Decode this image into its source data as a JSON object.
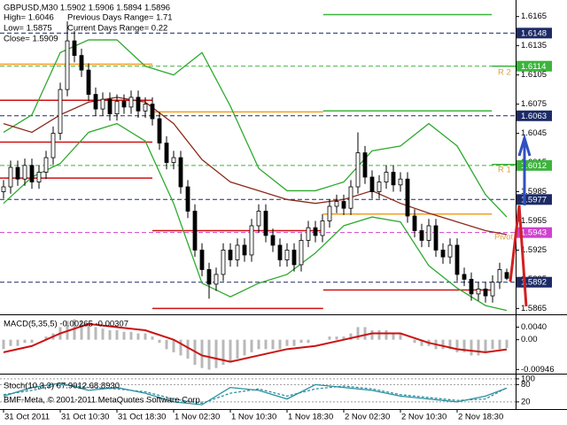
{
  "footer": "BMF-Meta, © 2001-2011 MetaQuotes Software Corp.",
  "chart_data": [
    {
      "type": "candlestick",
      "title": "GBPUSD,M30  1.5902 1.5906 1.5894 1.5896",
      "info": [
        "High= 1.6046",
        "Previous Days Range= 1.71",
        "Low= 1.5875",
        "Current Days Range= 0.22",
        "Close= 1.5909"
      ],
      "xlim": [
        -0.5,
        72.25
      ],
      "xticks": [
        {
          "value": 0,
          "label": "31 Oct 2011"
        },
        {
          "value": 8,
          "label": "31 Oct 10:30"
        },
        {
          "value": 16,
          "label": "31 Oct 18:30"
        },
        {
          "value": 24,
          "label": "1 Nov 02:30"
        },
        {
          "value": 32,
          "label": "1 Nov 10:30"
        },
        {
          "value": 40,
          "label": "1 Nov 18:30"
        },
        {
          "value": 48,
          "label": "2 Nov 02:30"
        },
        {
          "value": 56,
          "label": "2 Nov 10:30"
        },
        {
          "value": 64,
          "label": "2 Nov 18:30"
        }
      ],
      "ylim": [
        1.5859,
        1.6182
      ],
      "yticks": [
        1.6165,
        1.6135,
        1.6105,
        1.6075,
        1.6045,
        1.6015,
        1.5985,
        1.5955,
        1.5925,
        1.5895,
        1.5865
      ],
      "up_color": "#ffffff",
      "down_color": "#000000",
      "open": [
        1.5985,
        1.599,
        1.601,
        1.5998,
        1.6012,
        1.5995,
        1.6005,
        1.602,
        1.6045,
        1.609,
        1.614,
        1.6125,
        1.611,
        1.6085,
        1.607,
        1.608,
        1.6065,
        1.6078,
        1.6072,
        1.6082,
        1.6068,
        1.6075,
        1.606,
        1.6035,
        1.6015,
        1.602,
        1.599,
        1.5965,
        1.5925,
        1.5905,
        1.589,
        1.59,
        1.5925,
        1.5915,
        1.593,
        1.592,
        1.595,
        1.5965,
        1.594,
        1.593,
        1.5915,
        1.5925,
        1.591,
        1.5935,
        1.5948,
        1.594,
        1.5955,
        1.597,
        1.5975,
        1.5968,
        1.599,
        1.6025,
        1.6,
        1.5985,
        1.5995,
        1.6005,
        1.5992,
        1.5998,
        1.596,
        1.5945,
        1.5935,
        1.595,
        1.5925,
        1.5918,
        1.593,
        1.59,
        1.5895,
        1.588,
        1.5885,
        1.5878,
        1.5892,
        1.5902
      ],
      "high": [
        1.5997,
        1.6017,
        1.6017,
        1.6019,
        1.6019,
        1.6012,
        1.6027,
        1.6052,
        1.6097,
        1.616,
        1.615,
        1.6132,
        1.6117,
        1.6092,
        1.6087,
        1.6087,
        1.6085,
        1.6085,
        1.6089,
        1.6089,
        1.6082,
        1.6082,
        1.6067,
        1.6042,
        1.6027,
        1.6027,
        1.5997,
        1.5972,
        1.5932,
        1.5912,
        1.5907,
        1.5932,
        1.5932,
        1.5937,
        1.5937,
        1.5957,
        1.5972,
        1.5972,
        1.5947,
        1.5937,
        1.5932,
        1.5932,
        1.5942,
        1.5955,
        1.5955,
        1.5962,
        1.5977,
        1.5982,
        1.5982,
        1.5997,
        1.6046,
        1.6032,
        1.6007,
        1.6002,
        1.6012,
        1.6012,
        1.6005,
        1.6005,
        1.5967,
        1.5952,
        1.5957,
        1.5957,
        1.5932,
        1.5937,
        1.5937,
        1.5907,
        1.5902,
        1.5892,
        1.5892,
        1.5899,
        1.5912,
        1.5906
      ],
      "low": [
        1.5978,
        1.5983,
        1.5991,
        1.5991,
        1.5988,
        1.5988,
        1.5998,
        1.6013,
        1.6038,
        1.6083,
        1.6118,
        1.6103,
        1.6078,
        1.6063,
        1.6063,
        1.6058,
        1.6058,
        1.6065,
        1.6065,
        1.6061,
        1.6061,
        1.6053,
        1.6028,
        1.6008,
        1.6008,
        1.5983,
        1.5958,
        1.5918,
        1.5898,
        1.5875,
        1.5883,
        1.5893,
        1.5908,
        1.5908,
        1.5913,
        1.5913,
        1.5943,
        1.5933,
        1.5923,
        1.5908,
        1.5908,
        1.5903,
        1.5903,
        1.5928,
        1.5933,
        1.5933,
        1.5948,
        1.5963,
        1.5961,
        1.5961,
        1.5983,
        1.5993,
        1.5978,
        1.5978,
        1.5988,
        1.5985,
        1.5985,
        1.5953,
        1.5938,
        1.5928,
        1.5928,
        1.5918,
        1.5911,
        1.5911,
        1.5893,
        1.5888,
        1.5873,
        1.5873,
        1.5871,
        1.5871,
        1.5885,
        1.5894
      ],
      "close": [
        1.599,
        1.601,
        1.5998,
        1.6012,
        1.5995,
        1.6005,
        1.602,
        1.6045,
        1.609,
        1.614,
        1.6125,
        1.611,
        1.6085,
        1.607,
        1.608,
        1.6065,
        1.6078,
        1.6072,
        1.6082,
        1.6068,
        1.6075,
        1.606,
        1.6035,
        1.6015,
        1.602,
        1.599,
        1.5965,
        1.5925,
        1.5905,
        1.589,
        1.59,
        1.5925,
        1.5915,
        1.593,
        1.592,
        1.595,
        1.5965,
        1.594,
        1.593,
        1.5915,
        1.5925,
        1.591,
        1.5935,
        1.5948,
        1.594,
        1.5955,
        1.597,
        1.5975,
        1.5968,
        1.599,
        1.6025,
        1.6,
        1.5985,
        1.5995,
        1.6005,
        1.5992,
        1.5998,
        1.596,
        1.5945,
        1.5935,
        1.595,
        1.5925,
        1.5918,
        1.593,
        1.59,
        1.5895,
        1.588,
        1.5885,
        1.5878,
        1.5892,
        1.5905,
        1.5896
      ],
      "indicator_x": [
        0,
        4,
        8,
        12,
        16,
        20,
        24,
        28,
        32,
        36,
        40,
        44,
        48,
        52,
        56,
        60,
        64,
        68,
        71
      ],
      "indicators": [
        {
          "color": "#2eaa2e",
          "values": [
            1.6046,
            1.6064,
            1.6128,
            1.6141,
            1.6141,
            1.6114,
            1.6105,
            1.6128,
            1.6073,
            1.6009,
            1.5986,
            1.5986,
            1.5995,
            1.6027,
            1.6032,
            1.6055,
            1.6032,
            1.5982,
            1.5959
          ]
        },
        {
          "color": "#2eaa2e",
          "values": [
            1.5973,
            1.6,
            1.6014,
            1.6046,
            1.6055,
            1.6037,
            1.5973,
            1.5891,
            1.5877,
            1.5891,
            1.59,
            1.5922,
            1.595,
            1.5959,
            1.5954,
            1.5909,
            1.5886,
            1.5868,
            1.5863
          ]
        },
        {
          "color": "#8b2a1a",
          "values": [
            1.6055,
            1.6046,
            1.6064,
            1.6077,
            1.6082,
            1.6077,
            1.6055,
            1.6018,
            1.5995,
            1.5986,
            1.5977,
            1.5973,
            1.5977,
            1.5986,
            1.5973,
            1.5963,
            1.5954,
            1.5945,
            1.5941
          ]
        }
      ],
      "pivot_segments": [
        {
          "color": "#3cb43c",
          "x": [
            45.1,
            68.9
          ],
          "value": 1.6167
        },
        {
          "color": "#3cb43c",
          "x": [
            68.9,
            72.25
          ],
          "value": 1.6114
        },
        {
          "color": "#3cb43c",
          "x": [
            45.1,
            68.9
          ],
          "value": 1.6068
        },
        {
          "color": "#3cb43c",
          "x": [
            68.9,
            72.25
          ],
          "value": 1.6013
        },
        {
          "color": "#f0a020",
          "x": [
            -0.5,
            21
          ],
          "value": 1.6116
        },
        {
          "color": "#f0a020",
          "x": [
            21,
            45.1
          ],
          "value": 1.6067
        },
        {
          "color": "#f0a020",
          "x": [
            45.1,
            68.9
          ],
          "value": 1.5962
        },
        {
          "color": "#d01010",
          "x": [
            -0.5,
            21
          ],
          "value": 1.6079
        },
        {
          "color": "#d01010",
          "x": [
            -0.5,
            21
          ],
          "value": 1.6036
        },
        {
          "color": "#d01010",
          "x": [
            -0.5,
            21
          ],
          "value": 1.5999
        },
        {
          "color": "#d01010",
          "x": [
            21,
            45.1
          ],
          "value": 1.5945
        },
        {
          "color": "#d01010",
          "x": [
            21,
            45.1
          ],
          "value": 1.5865
        },
        {
          "color": "#d01010",
          "x": [
            45.1,
            68.9
          ],
          "value": 1.5884
        }
      ],
      "levels": [
        {
          "value": 1.6148,
          "color": "#1c2a66"
        },
        {
          "value": 1.6114,
          "color": "#3cb43c"
        },
        {
          "value": 1.6063,
          "color": "#1c2a66"
        },
        {
          "value": 1.6012,
          "color": "#3cb43c"
        },
        {
          "value": 1.5977,
          "color": "#1c2a66"
        },
        {
          "value": 1.5943,
          "color": "#d040d0"
        },
        {
          "value": 1.5892,
          "color": "#1c2a66"
        }
      ],
      "annotations": [
        "R 2",
        "R 1",
        "Pivot"
      ]
    },
    {
      "type": "macd",
      "title": "MACD(5,35,5) -0.00265 -0.00307",
      "ylim": [
        -0.0105,
        0.0075
      ],
      "yticks": [
        {
          "value": 0.004,
          "label": "0.0040"
        },
        {
          "value": 0,
          "label": "0.00"
        },
        -0.00946
      ],
      "histogram": {
        "color": "#b8b8b8",
        "values": [
          -0.003,
          -0.002,
          -0.002,
          -0.001,
          -0.001,
          0,
          0.001,
          0.002,
          0.004,
          0.006,
          0.0065,
          0.006,
          0.005,
          0.004,
          0.0035,
          0.003,
          0.003,
          0.0025,
          0.0025,
          0.002,
          0.002,
          0.001,
          -0.001,
          -0.003,
          -0.004,
          -0.005,
          -0.006,
          -0.008,
          -0.009,
          -0.0095,
          -0.009,
          -0.008,
          -0.007,
          -0.006,
          -0.005,
          -0.004,
          -0.003,
          -0.003,
          -0.003,
          -0.003,
          -0.002,
          -0.002,
          -0.001,
          -0.001,
          0,
          0,
          0.001,
          0.001,
          0.001,
          0.002,
          0.004,
          0.004,
          0.003,
          0.003,
          0.003,
          0.002,
          0.002,
          0,
          -0.001,
          -0.002,
          -0.002,
          -0.003,
          -0.003,
          -0.003,
          -0.004,
          -0.004,
          -0.005,
          -0.005,
          -0.004,
          -0.003,
          -0.003,
          -0.00265
        ]
      },
      "signal": {
        "color": "#cc1111",
        "values": [
          -0.004,
          -0.002,
          0.002,
          0.005,
          0.004,
          0.003,
          0,
          -0.005,
          -0.007,
          -0.005,
          -0.003,
          -0.002,
          0,
          0.002,
          0.002,
          -0.001,
          -0.003,
          -0.004,
          -0.00307
        ]
      }
    },
    {
      "type": "stochastic",
      "title": "Stoch(10,3,3) 67.9012 68.8930",
      "ylim": [
        -5,
        115
      ],
      "yticks": [
        100,
        80,
        20
      ],
      "main": {
        "color": "#2a8fa0",
        "values": [
          40,
          70,
          85,
          60,
          70,
          50,
          20,
          10,
          70,
          60,
          30,
          80,
          70,
          60,
          40,
          30,
          20,
          40,
          67.9012
        ]
      },
      "signal": {
        "color": "#2a8fa0",
        "values": [
          45,
          60,
          80,
          70,
          65,
          55,
          30,
          15,
          50,
          65,
          40,
          65,
          75,
          65,
          45,
          35,
          25,
          30,
          68.893
        ]
      }
    }
  ]
}
